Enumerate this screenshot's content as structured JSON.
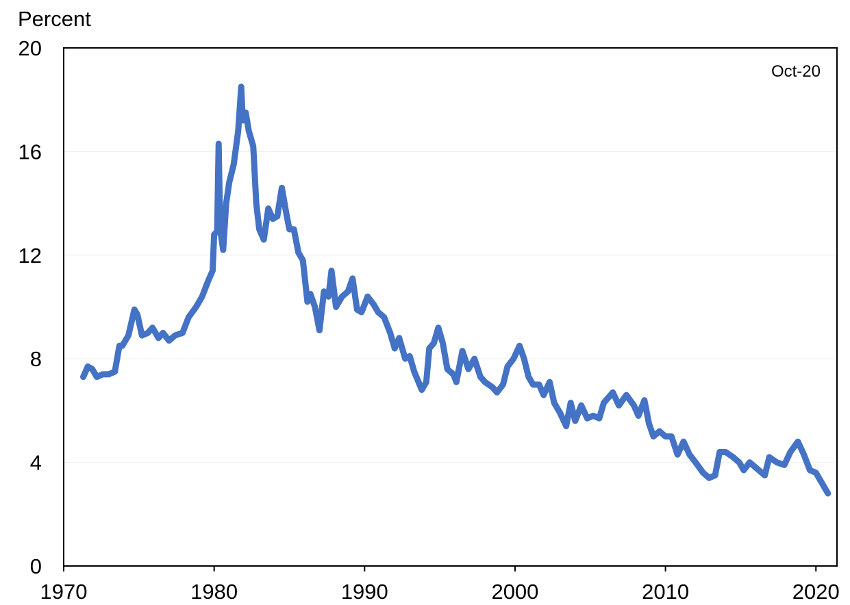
{
  "chart_data": {
    "type": "line",
    "y_label": "Percent",
    "annotation": "Oct-20",
    "x": [
      1971.3,
      1971.6,
      1971.9,
      1972.2,
      1972.6,
      1973.0,
      1973.4,
      1973.7,
      1973.9,
      1974.3,
      1974.7,
      1974.9,
      1975.2,
      1975.6,
      1975.9,
      1976.3,
      1976.6,
      1977.0,
      1977.4,
      1977.9,
      1978.3,
      1978.8,
      1979.2,
      1979.6,
      1979.9,
      1980.0,
      1980.2,
      1980.3,
      1980.4,
      1980.6,
      1980.8,
      1981.0,
      1981.3,
      1981.6,
      1981.8,
      1981.9,
      1982.1,
      1982.3,
      1982.6,
      1982.8,
      1983.0,
      1983.3,
      1983.6,
      1983.9,
      1984.2,
      1984.5,
      1984.8,
      1985.0,
      1985.3,
      1985.6,
      1985.9,
      1986.2,
      1986.4,
      1986.7,
      1987.0,
      1987.3,
      1987.6,
      1987.8,
      1988.1,
      1988.5,
      1988.9,
      1989.2,
      1989.5,
      1989.8,
      1990.2,
      1990.6,
      1990.9,
      1991.3,
      1991.7,
      1992.0,
      1992.3,
      1992.7,
      1993.0,
      1993.3,
      1993.8,
      1994.1,
      1994.3,
      1994.6,
      1994.9,
      1995.2,
      1995.5,
      1995.9,
      1996.1,
      1996.5,
      1996.9,
      1997.3,
      1997.7,
      1998.0,
      1998.5,
      1998.8,
      1999.2,
      1999.5,
      1999.9,
      2000.3,
      2000.6,
      2000.9,
      2001.2,
      2001.6,
      2001.9,
      2002.3,
      2002.6,
      2003.0,
      2003.4,
      2003.7,
      2004.0,
      2004.4,
      2004.8,
      2005.2,
      2005.6,
      2005.9,
      2006.5,
      2006.9,
      2007.4,
      2007.9,
      2008.2,
      2008.6,
      2008.9,
      2009.2,
      2009.6,
      2010.0,
      2010.4,
      2010.8,
      2011.2,
      2011.6,
      2012.0,
      2012.5,
      2012.9,
      2013.3,
      2013.6,
      2014.0,
      2014.5,
      2014.9,
      2015.2,
      2015.6,
      2016.0,
      2016.6,
      2016.9,
      2017.4,
      2017.9,
      2018.3,
      2018.8,
      2019.2,
      2019.6,
      2020.0,
      2020.4,
      2020.8
    ],
    "series": [
      {
        "color": "#4472c4",
        "values": [
          7.3,
          7.7,
          7.6,
          7.3,
          7.4,
          7.4,
          7.5,
          8.5,
          8.5,
          8.9,
          9.9,
          9.7,
          8.9,
          9.0,
          9.2,
          8.8,
          9.0,
          8.7,
          8.9,
          9.0,
          9.6,
          10.0,
          10.4,
          11.0,
          11.4,
          12.8,
          12.9,
          16.3,
          13.0,
          12.2,
          14.0,
          14.8,
          15.5,
          16.8,
          18.5,
          17.2,
          17.5,
          16.8,
          16.2,
          14.0,
          13.0,
          12.6,
          13.8,
          13.4,
          13.5,
          14.6,
          13.6,
          13.0,
          13.0,
          12.1,
          11.8,
          10.2,
          10.5,
          10.0,
          9.1,
          10.6,
          10.4,
          11.4,
          10.0,
          10.4,
          10.6,
          11.1,
          9.9,
          9.8,
          10.4,
          10.1,
          9.8,
          9.6,
          9.0,
          8.4,
          8.8,
          8.0,
          8.1,
          7.5,
          6.8,
          7.1,
          8.4,
          8.6,
          9.2,
          8.6,
          7.6,
          7.4,
          7.1,
          8.3,
          7.6,
          8.0,
          7.3,
          7.1,
          6.9,
          6.7,
          7.0,
          7.7,
          8.0,
          8.5,
          8.0,
          7.3,
          7.0,
          7.0,
          6.6,
          7.1,
          6.3,
          5.9,
          5.4,
          6.3,
          5.6,
          6.2,
          5.7,
          5.8,
          5.7,
          6.3,
          6.7,
          6.2,
          6.6,
          6.2,
          5.8,
          6.4,
          5.5,
          5.0,
          5.2,
          5.0,
          5.0,
          4.3,
          4.8,
          4.3,
          4.0,
          3.6,
          3.4,
          3.5,
          4.4,
          4.4,
          4.2,
          4.0,
          3.7,
          4.0,
          3.8,
          3.5,
          4.2,
          4.0,
          3.9,
          4.4,
          4.8,
          4.3,
          3.7,
          3.6,
          3.2,
          2.8
        ]
      }
    ],
    "xlim": [
      1970,
      2021.4
    ],
    "xticks": [
      1970,
      1980,
      1990,
      2000,
      2010,
      2020
    ],
    "ylim": [
      0,
      20
    ],
    "yticks": [
      0,
      4,
      8,
      12,
      16,
      20
    ],
    "grid": true
  }
}
